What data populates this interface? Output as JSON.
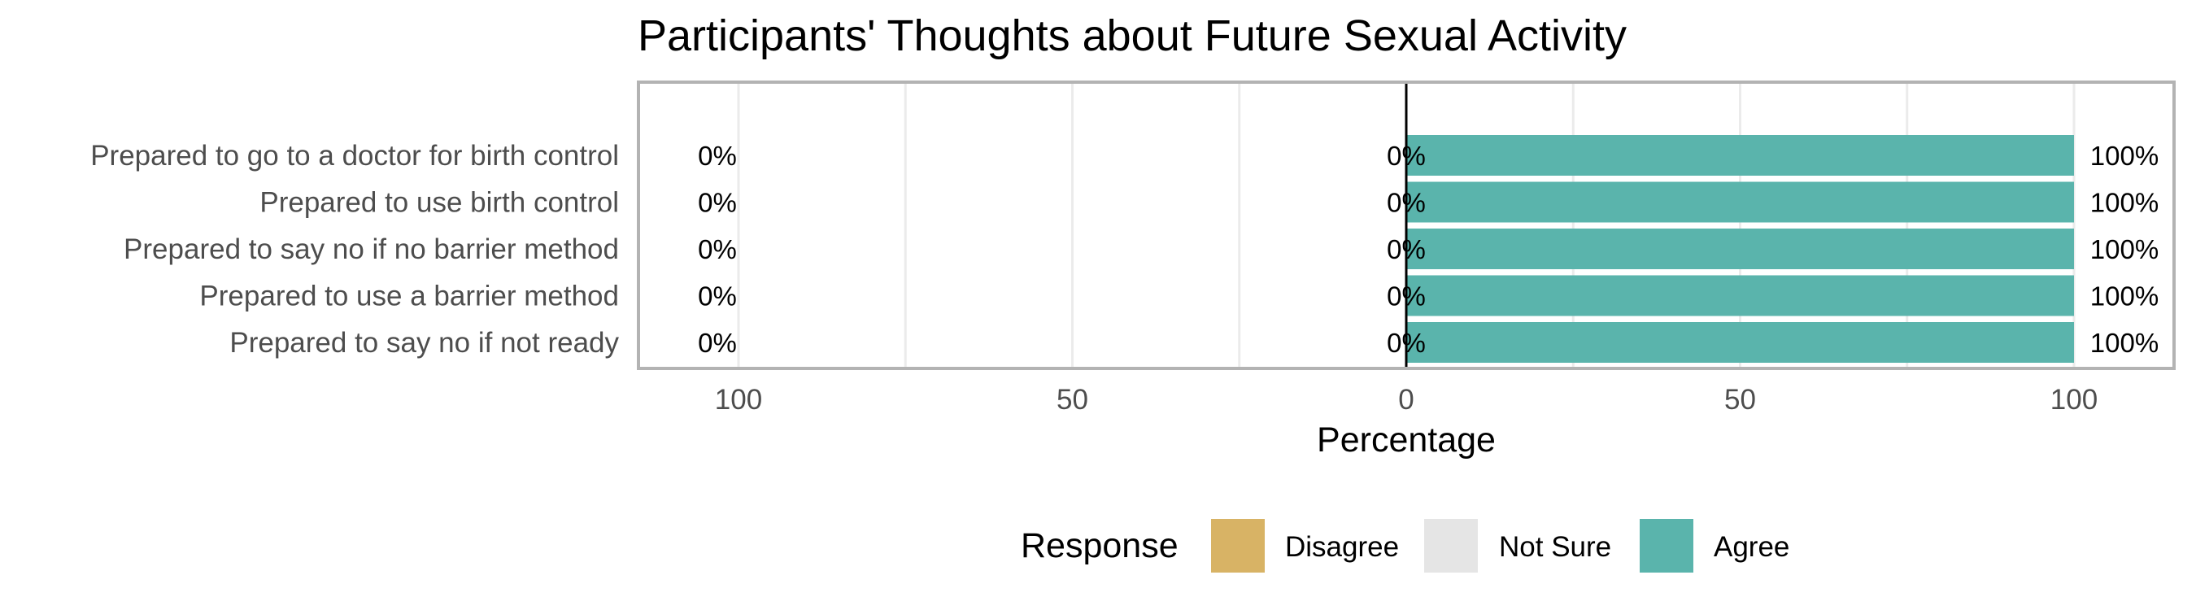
{
  "chart_data": {
    "type": "bar",
    "subtype": "diverging-stacked-horizontal",
    "title": "Participants' Thoughts about Future Sexual Activity",
    "xlabel": "Percentage",
    "ylabel": "",
    "xlim": [
      -100,
      100
    ],
    "x_ticks": [
      {
        "value": -100,
        "label": "100"
      },
      {
        "value": -50,
        "label": "50"
      },
      {
        "value": 0,
        "label": "0"
      },
      {
        "value": 50,
        "label": "50"
      },
      {
        "value": 100,
        "label": "100"
      }
    ],
    "categories": [
      "Prepared to go to a doctor for birth control",
      "Prepared to use birth control",
      "Prepared to say no if no barrier method",
      "Prepared to use a barrier method",
      "Prepared to say no if not ready"
    ],
    "series": [
      {
        "name": "Disagree",
        "color": "#d8b365",
        "values": [
          0,
          0,
          0,
          0,
          0
        ]
      },
      {
        "name": "Not Sure",
        "color": "#e5e5e5",
        "values": [
          0,
          0,
          0,
          0,
          0
        ]
      },
      {
        "name": "Agree",
        "color": "#5ab4ac",
        "values": [
          100,
          100,
          100,
          100,
          100
        ]
      }
    ],
    "data_labels": {
      "left": [
        "0%",
        "0%",
        "0%",
        "0%",
        "0%"
      ],
      "center": [
        "0%",
        "0%",
        "0%",
        "0%",
        "0%"
      ],
      "right": [
        "100%",
        "100%",
        "100%",
        "100%",
        "100%"
      ]
    },
    "legend": {
      "title": "Response",
      "position": "bottom",
      "items": [
        "Disagree",
        "Not Sure",
        "Agree"
      ]
    },
    "grid": true
  }
}
